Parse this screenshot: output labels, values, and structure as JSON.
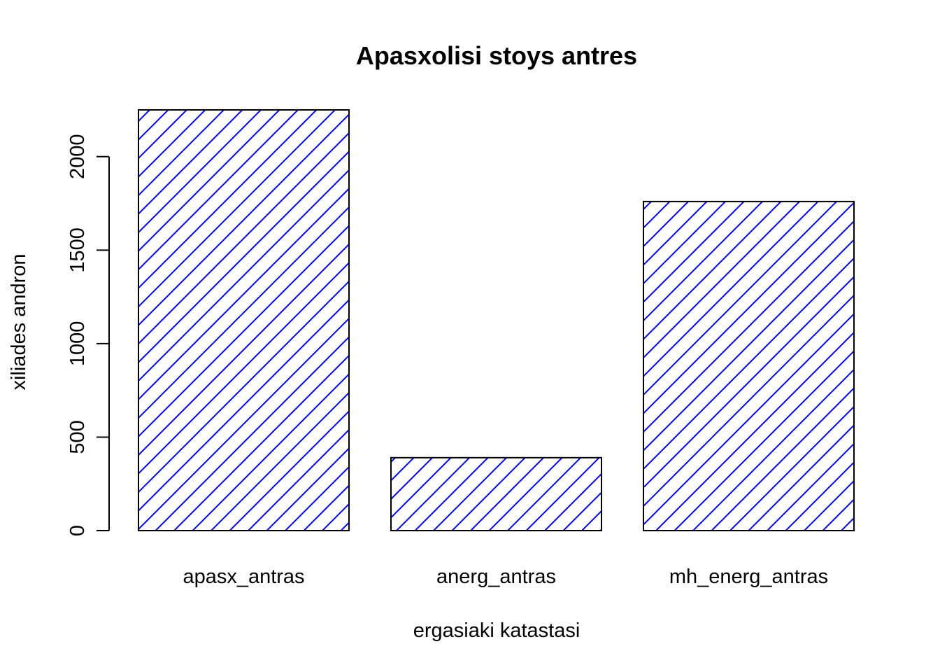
{
  "chart_data": {
    "type": "bar",
    "title": "Apasxolisi stoys antres",
    "xlabel": "ergasiaki katastasi",
    "ylabel": "xiliades andron",
    "categories": [
      "apasx_antras",
      "anerg_antras",
      "mh_energ_antras"
    ],
    "values": [
      2250,
      390,
      1760
    ],
    "yticks": [
      0,
      500,
      1000,
      1500,
      2000
    ],
    "ylim": [
      0,
      2250
    ],
    "bar_fill": "hatched",
    "hatch_color": "#0000ff",
    "bar_border_color": "#000000",
    "grid": false,
    "legend": "none"
  }
}
